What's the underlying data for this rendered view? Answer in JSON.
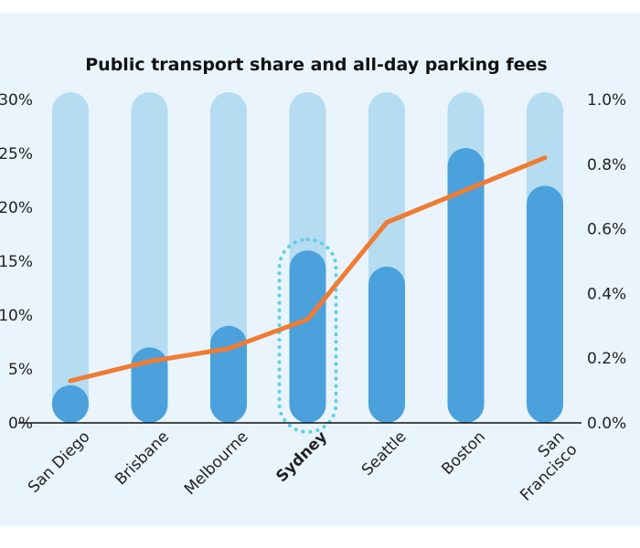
{
  "chart_data": {
    "type": "bar",
    "title": "Public transport share and all-day parking fees",
    "categories": [
      "San Diego",
      "Brisbane",
      "Melbourne",
      "Sydney",
      "Seattle",
      "Boston",
      "San Francisco"
    ],
    "highlight": "Sydney",
    "left_axis": {
      "ticks": [
        "0%",
        "5%",
        "10%",
        "15%",
        "20%",
        "25%",
        "30%"
      ],
      "ylim": [
        0,
        30
      ]
    },
    "right_axis": {
      "ticks": [
        "0.0%",
        "0.2%",
        "0.4%",
        "0.6%",
        "0.8%",
        "1.0%"
      ],
      "ylim": [
        0,
        1.0
      ]
    },
    "series": [
      {
        "type": "bar",
        "axis": "left",
        "values": [
          3.5,
          7,
          9,
          16,
          14.5,
          25.5,
          22
        ]
      },
      {
        "type": "line",
        "axis": "right",
        "values": [
          0.13,
          0.19,
          0.23,
          0.32,
          0.62,
          0.72,
          0.82
        ]
      }
    ],
    "colors": {
      "bar_background": "#b5dcf1",
      "bar": "#4ba1dc",
      "line": "#f07b32",
      "highlight_ring": "#5cd0e6",
      "axis": "#111111"
    }
  }
}
